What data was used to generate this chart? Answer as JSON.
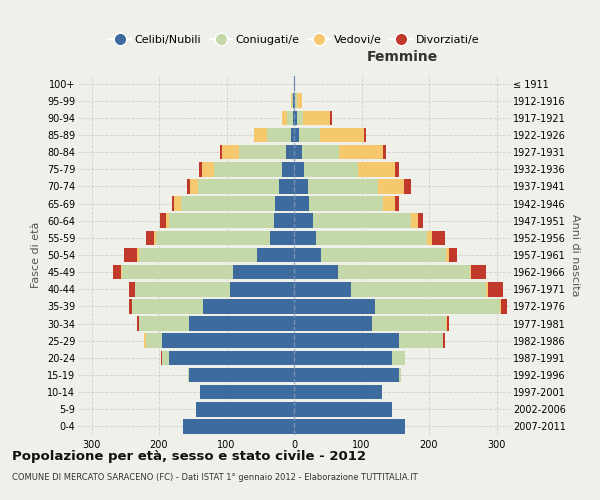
{
  "age_groups": [
    "0-4",
    "5-9",
    "10-14",
    "15-19",
    "20-24",
    "25-29",
    "30-34",
    "35-39",
    "40-44",
    "45-49",
    "50-54",
    "55-59",
    "60-64",
    "65-69",
    "70-74",
    "75-79",
    "80-84",
    "85-89",
    "90-94",
    "95-99",
    "100+"
  ],
  "birth_years": [
    "2007-2011",
    "2002-2006",
    "1997-2001",
    "1992-1996",
    "1987-1991",
    "1982-1986",
    "1977-1981",
    "1972-1976",
    "1967-1971",
    "1962-1966",
    "1957-1961",
    "1952-1956",
    "1947-1951",
    "1942-1946",
    "1937-1941",
    "1932-1936",
    "1927-1931",
    "1922-1926",
    "1917-1921",
    "1912-1916",
    "≤ 1911"
  ],
  "males": {
    "celibe": [
      165,
      145,
      140,
      155,
      185,
      195,
      155,
      135,
      95,
      90,
      55,
      35,
      30,
      28,
      22,
      18,
      12,
      5,
      2,
      1,
      0
    ],
    "coniugato": [
      0,
      0,
      0,
      2,
      10,
      25,
      75,
      105,
      140,
      165,
      175,
      170,
      155,
      140,
      120,
      100,
      70,
      35,
      8,
      2,
      0
    ],
    "vedovo": [
      0,
      0,
      0,
      0,
      1,
      2,
      0,
      0,
      0,
      1,
      2,
      3,
      5,
      10,
      12,
      18,
      25,
      20,
      8,
      2,
      0
    ],
    "divorziato": [
      0,
      0,
      0,
      0,
      1,
      0,
      3,
      5,
      10,
      12,
      20,
      12,
      8,
      3,
      5,
      5,
      2,
      0,
      0,
      0,
      0
    ]
  },
  "females": {
    "nubile": [
      165,
      145,
      130,
      155,
      145,
      155,
      115,
      120,
      85,
      65,
      40,
      32,
      28,
      22,
      20,
      15,
      12,
      8,
      4,
      2,
      1
    ],
    "coniugata": [
      0,
      0,
      0,
      3,
      20,
      65,
      110,
      185,
      200,
      195,
      185,
      165,
      145,
      110,
      105,
      80,
      55,
      30,
      10,
      2,
      0
    ],
    "vedova": [
      0,
      0,
      0,
      0,
      0,
      1,
      2,
      2,
      2,
      2,
      4,
      8,
      10,
      18,
      38,
      55,
      65,
      65,
      40,
      8,
      1
    ],
    "divorziata": [
      0,
      0,
      0,
      0,
      0,
      2,
      3,
      8,
      22,
      22,
      12,
      18,
      8,
      5,
      10,
      5,
      5,
      3,
      2,
      0,
      0
    ]
  },
  "colors": {
    "celibe": "#3d6b9e",
    "coniugato": "#c5d9a8",
    "vedovo": "#f5c86e",
    "divorziato": "#c0392b"
  },
  "title": "Popolazione per età, sesso e stato civile - 2012",
  "subtitle": "COMUNE DI MERCATO SARACENO (FC) - Dati ISTAT 1° gennaio 2012 - Elaborazione TUTTITALIA.IT",
  "xlabel_right": "Femmine",
  "ylabel_left": "Fasce di età",
  "ylabel_right": "Anni di nascita",
  "xlim": 320,
  "background_color": "#f0f0eb",
  "grid_color": "#cccccc"
}
